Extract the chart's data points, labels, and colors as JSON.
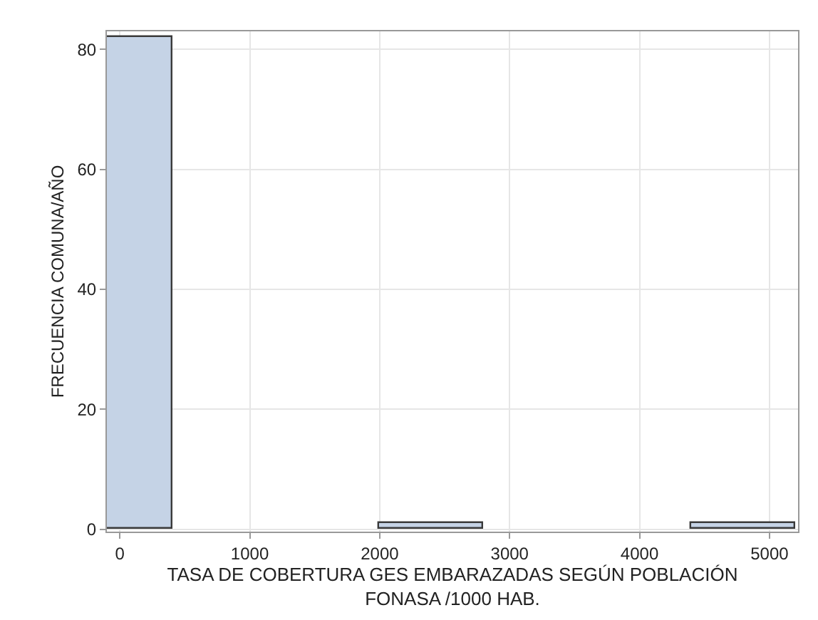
{
  "chart_data": {
    "type": "histogram",
    "xlabel": "TASA DE COBERTURA GES EMBARAZADAS SEGÚN POBLACIÓN\nFONASA /1000 HAB.",
    "ylabel": "FRECUENCIA COMUNA/AÑO",
    "bins": [
      -400,
      400,
      1200,
      2000,
      2800,
      3600,
      4400,
      5200
    ],
    "values": [
      82,
      0,
      0,
      1,
      0,
      0,
      1
    ],
    "color": "#c5d3e6",
    "xlim": [
      -100,
      5220
    ],
    "xticks": [
      0,
      1000,
      2000,
      3000,
      4000,
      5000
    ],
    "ylim": [
      -0.4,
      83
    ],
    "yticks": [
      0,
      20,
      40,
      60,
      80
    ],
    "grid": true
  }
}
